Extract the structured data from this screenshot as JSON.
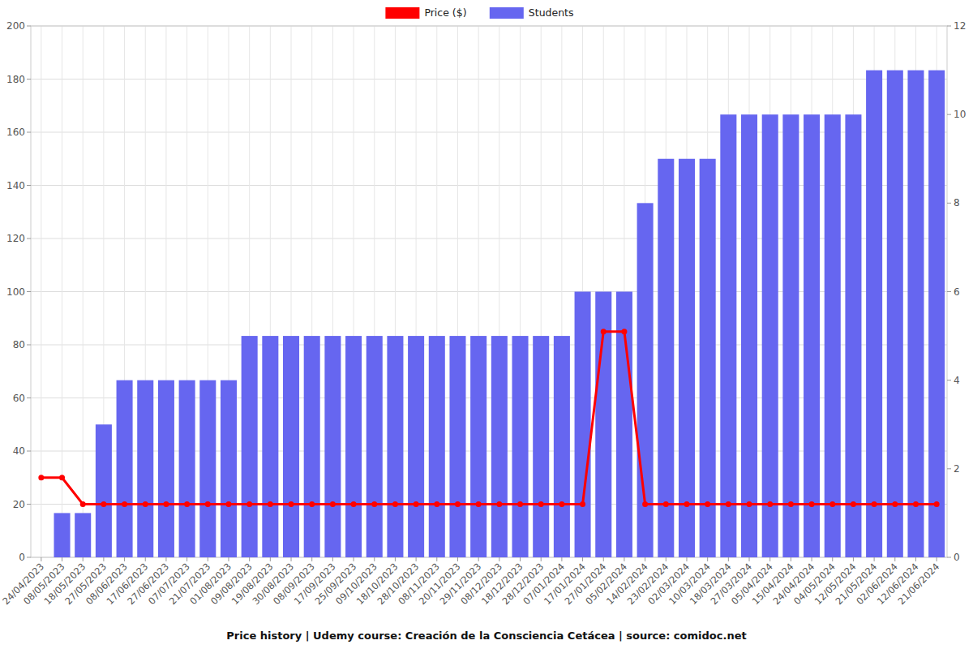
{
  "chart_data": {
    "type": "bar",
    "title": "Price history | Udemy course: Creación de la Consciencia Cetácea | source: comidoc.net",
    "categories": [
      "24/04/2023",
      "08/05/2023",
      "18/05/2023",
      "27/05/2023",
      "08/06/2023",
      "17/06/2023",
      "27/06/2023",
      "07/07/2023",
      "21/07/2023",
      "01/08/2023",
      "09/08/2023",
      "19/08/2023",
      "30/08/2023",
      "08/09/2023",
      "17/09/2023",
      "25/09/2023",
      "09/10/2023",
      "18/10/2023",
      "28/10/2023",
      "08/11/2023",
      "20/11/2023",
      "29/11/2023",
      "08/12/2023",
      "18/12/2023",
      "28/12/2023",
      "07/01/2024",
      "17/01/2024",
      "27/01/2024",
      "05/02/2024",
      "14/02/2024",
      "23/02/2024",
      "02/03/2024",
      "10/03/2024",
      "18/03/2024",
      "27/03/2024",
      "05/04/2024",
      "15/04/2024",
      "24/04/2024",
      "04/05/2024",
      "12/05/2024",
      "21/05/2024",
      "02/06/2024",
      "12/06/2024",
      "21/06/2024"
    ],
    "series": [
      {
        "name": "Price ($)",
        "type": "line",
        "color": "#ff0000",
        "marker": "circle",
        "values": [
          30,
          30,
          20,
          20,
          20,
          20,
          20,
          20,
          20,
          20,
          20,
          20,
          20,
          20,
          20,
          20,
          20,
          20,
          20,
          20,
          20,
          20,
          20,
          20,
          20,
          20,
          20,
          85,
          85,
          20,
          20,
          20,
          20,
          20,
          20,
          20,
          20,
          20,
          20,
          20,
          20,
          20,
          20,
          20
        ]
      },
      {
        "name": "Students",
        "type": "bar",
        "color": "#6666f0",
        "axis": "y2",
        "values": [
          0,
          1,
          1,
          3,
          4,
          4,
          4,
          4,
          4,
          4,
          5,
          5,
          5,
          5,
          5,
          5,
          5,
          5,
          5,
          5,
          5,
          5,
          5,
          5,
          5,
          5,
          6,
          6,
          6,
          8,
          9,
          9,
          9,
          10,
          10,
          10,
          10,
          10,
          10,
          10,
          11,
          11,
          11,
          11
        ]
      }
    ],
    "ylim": [
      0,
      200
    ],
    "yticks": [
      0,
      20,
      40,
      60,
      80,
      100,
      120,
      140,
      160,
      180,
      200
    ],
    "y2lim": [
      0,
      12
    ],
    "y2ticks": [
      0,
      2,
      4,
      6,
      8,
      10,
      12
    ],
    "grid": true,
    "legend": "top"
  }
}
